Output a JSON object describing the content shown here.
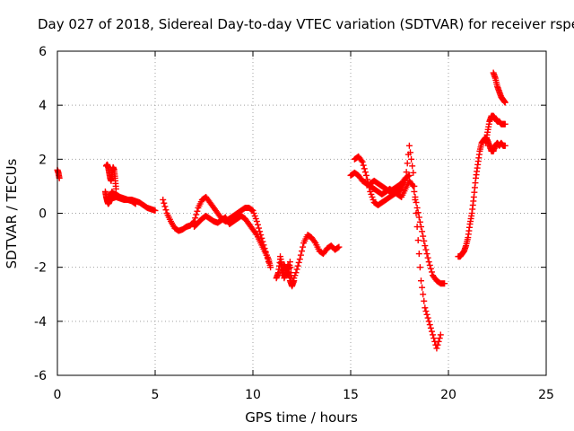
{
  "chart_data": {
    "type": "scatter",
    "title": "Day 027 of 2018, Sidereal Day-to-day VTEC variation (SDTVAR) for receiver rspe",
    "xlabel": "GPS time / hours",
    "ylabel": "SDTVAR / TECUs",
    "xlim": [
      0,
      25
    ],
    "ylim": [
      -6,
      6
    ],
    "x_ticks": [
      0,
      5,
      10,
      15,
      20,
      25
    ],
    "y_ticks": [
      -6,
      -4,
      -2,
      0,
      2,
      4,
      6
    ],
    "x_tick_labels": [
      "0",
      "5",
      "10",
      "15",
      "20",
      "25"
    ],
    "y_tick_labels": [
      "-6",
      "-4",
      "-2",
      "0",
      "2",
      "4",
      "6"
    ],
    "grid": true,
    "marker": "+",
    "marker_color": "#ff0000",
    "series": [
      {
        "name": "t00",
        "x": [
          0.0,
          0.05,
          0.1
        ],
        "y": [
          1.6,
          1.5,
          1.3
        ]
      },
      {
        "name": "t01",
        "x": [
          2.5,
          2.55,
          2.6,
          2.65,
          2.7,
          2.75,
          2.8,
          2.85,
          2.9,
          2.95,
          3.0
        ],
        "y": [
          1.75,
          1.8,
          1.7,
          1.5,
          1.3,
          1.2,
          1.5,
          1.7,
          1.6,
          1.3,
          0.9
        ]
      },
      {
        "name": "t02",
        "x": [
          2.45,
          2.5,
          2.55,
          2.6,
          2.65,
          2.7,
          2.75,
          2.8
        ],
        "y": [
          0.8,
          0.6,
          0.45,
          0.35,
          0.4,
          0.55,
          0.7,
          0.8
        ]
      },
      {
        "name": "t03",
        "x": [
          2.8,
          3.0,
          3.2,
          3.4,
          3.6,
          3.8,
          4.0,
          4.2,
          4.4,
          4.6,
          4.8,
          5.0
        ],
        "y": [
          0.75,
          0.7,
          0.6,
          0.55,
          0.5,
          0.5,
          0.45,
          0.4,
          0.3,
          0.2,
          0.15,
          0.1
        ]
      },
      {
        "name": "t04",
        "x": [
          2.6,
          2.8,
          3.0,
          3.2,
          3.4,
          3.6,
          3.8,
          4.0
        ],
        "y": [
          0.5,
          0.55,
          0.6,
          0.55,
          0.5,
          0.5,
          0.45,
          0.35
        ]
      },
      {
        "name": "t05",
        "x": [
          5.4,
          5.6,
          5.8,
          6.0,
          6.2,
          6.4,
          6.6,
          6.8,
          7.0,
          7.2,
          7.4,
          7.6,
          7.8,
          8.0,
          8.2,
          8.4,
          8.6,
          8.8,
          9.0,
          9.2,
          9.4,
          9.6,
          9.8,
          10.0,
          10.2,
          10.4,
          10.6,
          10.8
        ],
        "y": [
          0.5,
          0.0,
          -0.3,
          -0.55,
          -0.65,
          -0.6,
          -0.5,
          -0.45,
          -0.3,
          0.2,
          0.5,
          0.6,
          0.4,
          0.2,
          0.0,
          -0.2,
          -0.3,
          -0.2,
          -0.1,
          0.0,
          0.1,
          0.2,
          0.2,
          0.1,
          -0.3,
          -0.8,
          -1.3,
          -1.8
        ]
      },
      {
        "name": "t06",
        "x": [
          7.0,
          7.2,
          7.4,
          7.6,
          7.8,
          8.0,
          8.2,
          8.4,
          8.6,
          8.8,
          9.0,
          9.2,
          9.4,
          9.6,
          9.8,
          10.0,
          10.2,
          10.4,
          10.6,
          10.8,
          10.9
        ],
        "y": [
          -0.5,
          -0.35,
          -0.2,
          -0.1,
          -0.2,
          -0.3,
          -0.35,
          -0.25,
          -0.15,
          -0.4,
          -0.3,
          -0.2,
          -0.1,
          -0.2,
          -0.4,
          -0.6,
          -0.8,
          -1.1,
          -1.4,
          -1.7,
          -2.0
        ]
      },
      {
        "name": "t07",
        "x": [
          11.2,
          11.3,
          11.4,
          11.5,
          11.6,
          11.7,
          11.8,
          11.9,
          12.0,
          12.2,
          12.4,
          12.6,
          12.8,
          13.0,
          13.2,
          13.4,
          13.6,
          13.8,
          14.0,
          14.2,
          14.4
        ],
        "y": [
          -2.4,
          -2.2,
          -1.7,
          -2.3,
          -1.9,
          -2.1,
          -2.3,
          -1.8,
          -2.6,
          -2.2,
          -1.7,
          -1.1,
          -0.8,
          -0.9,
          -1.1,
          -1.4,
          -1.5,
          -1.3,
          -1.2,
          -1.35,
          -1.25
        ]
      },
      {
        "name": "t08",
        "x": [
          11.4,
          11.5,
          11.6,
          11.7,
          11.8,
          11.9,
          12.0,
          12.1
        ],
        "y": [
          -1.6,
          -2.0,
          -2.4,
          -2.2,
          -1.9,
          -2.5,
          -2.7,
          -2.5
        ]
      },
      {
        "name": "t09",
        "x": [
          15.0,
          15.2,
          15.4,
          15.6,
          15.8,
          16.0,
          16.2,
          16.4,
          16.6,
          16.8,
          17.0,
          17.2,
          17.4,
          17.6,
          17.8,
          18.0,
          18.2,
          18.4,
          18.6,
          18.8,
          19.0,
          19.2,
          19.4,
          19.6,
          19.8
        ],
        "y": [
          1.4,
          1.5,
          1.4,
          1.2,
          1.1,
          1.0,
          0.9,
          0.8,
          0.7,
          0.8,
          0.9,
          0.8,
          0.7,
          0.6,
          0.9,
          1.2,
          1.0,
          0.2,
          -0.5,
          -1.2,
          -1.8,
          -2.3,
          -2.5,
          -2.6,
          -2.6
        ]
      },
      {
        "name": "t10",
        "x": [
          15.2,
          15.4,
          15.6,
          15.8,
          16.0,
          16.2,
          16.4,
          16.6,
          16.8,
          17.0,
          17.2,
          17.4,
          17.6,
          17.8,
          18.0,
          18.2,
          18.4,
          18.6,
          18.8,
          19.0,
          19.2,
          19.4,
          19.6
        ],
        "y": [
          2.0,
          2.1,
          1.9,
          1.4,
          0.8,
          0.4,
          0.3,
          0.4,
          0.5,
          0.6,
          0.7,
          0.8,
          0.9,
          1.2,
          2.5,
          1.5,
          -0.5,
          -2.5,
          -3.5,
          -4.0,
          -4.5,
          -5.0,
          -4.5
        ]
      },
      {
        "name": "t11",
        "x": [
          16.0,
          16.2,
          16.4,
          16.6,
          16.8,
          17.0,
          17.2,
          17.4,
          17.6,
          17.8,
          18.0
        ],
        "y": [
          1.1,
          1.2,
          1.1,
          1.0,
          0.9,
          0.8,
          0.9,
          1.0,
          1.1,
          1.3,
          1.4
        ]
      },
      {
        "name": "t12",
        "x": [
          20.5,
          20.6,
          20.7,
          20.8,
          20.9,
          21.0,
          21.1,
          21.2,
          21.3,
          21.4,
          21.5,
          21.6,
          21.7,
          21.8,
          21.9,
          22.0,
          22.1,
          22.2,
          22.3,
          22.4,
          22.5,
          22.6,
          22.7,
          22.8,
          22.9
        ],
        "y": [
          -1.6,
          -1.6,
          -1.5,
          -1.4,
          -1.2,
          -0.9,
          -0.4,
          0.0,
          0.6,
          1.3,
          1.8,
          2.3,
          2.6,
          2.7,
          2.8,
          2.7,
          2.5,
          2.3,
          2.3,
          2.5,
          2.6,
          2.5,
          2.6,
          2.5,
          2.5
        ]
      },
      {
        "name": "t13",
        "x": [
          21.9,
          22.0,
          22.1,
          22.2,
          22.3,
          22.4,
          22.5,
          22.6,
          22.7,
          22.8,
          22.9
        ],
        "y": [
          2.6,
          3.0,
          3.4,
          3.6,
          3.6,
          3.5,
          3.4,
          3.4,
          3.3,
          3.3,
          3.3
        ]
      },
      {
        "name": "t14",
        "x": [
          22.3,
          22.4,
          22.5,
          22.6,
          22.7,
          22.8,
          22.9
        ],
        "y": [
          5.2,
          5.0,
          4.7,
          4.5,
          4.3,
          4.2,
          4.1
        ]
      }
    ]
  }
}
